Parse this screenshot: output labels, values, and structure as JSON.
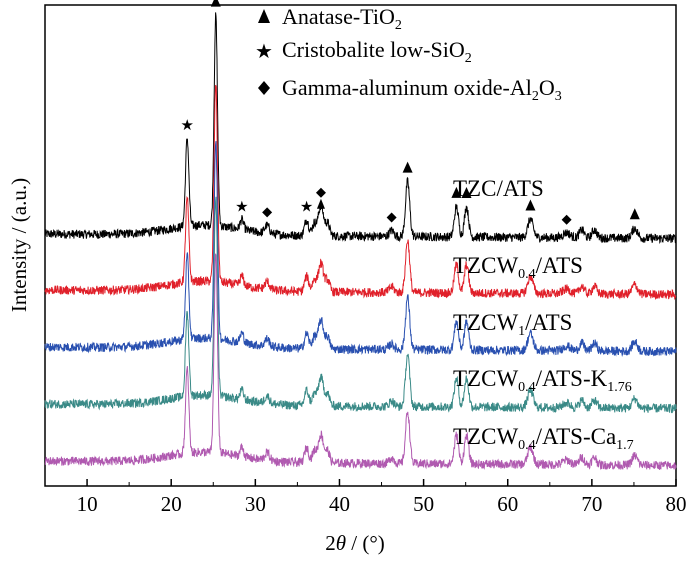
{
  "chart_data": {
    "type": "line",
    "xlabel_main": "2",
    "xlabel_theta": "θ",
    "xlabel_unit": " / (°)",
    "ylabel": "Intensity / (a.u.)",
    "x_ticks": [
      "10",
      "20",
      "30",
      "40",
      "50",
      "60",
      "70",
      "80"
    ],
    "xlim": [
      5,
      80
    ],
    "legend": [
      {
        "marker": "triangle",
        "text": "Anatase-TiO",
        "sub": "2"
      },
      {
        "marker": "star",
        "text": "Cristobalite low-SiO",
        "sub": "2"
      },
      {
        "marker": "diamond",
        "text": "Gamma-aluminum oxide-Al",
        "sub": "2",
        "after": "O",
        "sub2": "3"
      }
    ],
    "series": [
      {
        "name": "TZC/ATS",
        "label_main": "TZC/ATS",
        "label_sub": "",
        "label_tail": "",
        "label_sub2": "",
        "color": "#000000",
        "peak_scale": 1.0
      },
      {
        "name": "TZCW0.4/ATS",
        "label_main": "TZCW",
        "label_sub": "0.4",
        "label_tail": "/ATS",
        "label_sub2": "",
        "color": "#e0202a",
        "peak_scale": 0.95
      },
      {
        "name": "TZCW1/ATS",
        "label_main": "TZCW",
        "label_sub": "1",
        "label_tail": "/ATS",
        "label_sub2": "",
        "color": "#2950b0",
        "peak_scale": 0.95
      },
      {
        "name": "TZCW0.4/ATS-K1.76",
        "label_main": "TZCW",
        "label_sub": "0.4",
        "label_tail": "/ATS-K",
        "label_sub2": "1.76",
        "color": "#3a8a87",
        "peak_scale": 0.95
      },
      {
        "name": "TZCW0.4/ATS-Ca1.7",
        "label_main": "TZCW",
        "label_sub": "0.4",
        "label_tail": "/ATS-Ca",
        "label_sub2": "1.7",
        "color": "#b05ab0",
        "peak_scale": 0.95
      }
    ],
    "peaks": [
      {
        "x": 21.9,
        "h": 88,
        "w": 0.28
      },
      {
        "x": 25.3,
        "h": 210,
        "w": 0.28
      },
      {
        "x": 28.4,
        "h": 10,
        "w": 0.3
      },
      {
        "x": 31.4,
        "h": 8,
        "w": 0.4
      },
      {
        "x": 36.1,
        "h": 16,
        "w": 0.35
      },
      {
        "x": 37.0,
        "h": 12,
        "w": 0.35
      },
      {
        "x": 37.8,
        "h": 30,
        "w": 0.45
      },
      {
        "x": 38.6,
        "h": 12,
        "w": 0.35
      },
      {
        "x": 46.2,
        "h": 6,
        "w": 0.4
      },
      {
        "x": 48.1,
        "h": 55,
        "w": 0.35
      },
      {
        "x": 53.9,
        "h": 30,
        "w": 0.35
      },
      {
        "x": 55.1,
        "h": 30,
        "w": 0.35
      },
      {
        "x": 62.7,
        "h": 18,
        "w": 0.45
      },
      {
        "x": 67.0,
        "h": 5,
        "w": 0.6
      },
      {
        "x": 68.8,
        "h": 8,
        "w": 0.4
      },
      {
        "x": 70.3,
        "h": 8,
        "w": 0.4
      },
      {
        "x": 75.1,
        "h": 10,
        "w": 0.45
      }
    ],
    "markers_on_top_series": [
      {
        "type": "star",
        "x": 21.9
      },
      {
        "type": "triangle",
        "x": 25.3
      },
      {
        "type": "star",
        "x": 28.4
      },
      {
        "type": "diamond",
        "x": 31.4
      },
      {
        "type": "star",
        "x": 36.1
      },
      {
        "type": "diamond",
        "x": 37.8,
        "stack": true
      },
      {
        "type": "diamond",
        "x": 46.2
      },
      {
        "type": "triangle",
        "x": 48.1
      },
      {
        "type": "triangle",
        "x": 53.9
      },
      {
        "type": "triangle",
        "x": 55.1
      },
      {
        "type": "triangle",
        "x": 62.7
      },
      {
        "type": "diamond",
        "x": 67.0
      },
      {
        "type": "triangle",
        "x": 75.1
      }
    ]
  }
}
